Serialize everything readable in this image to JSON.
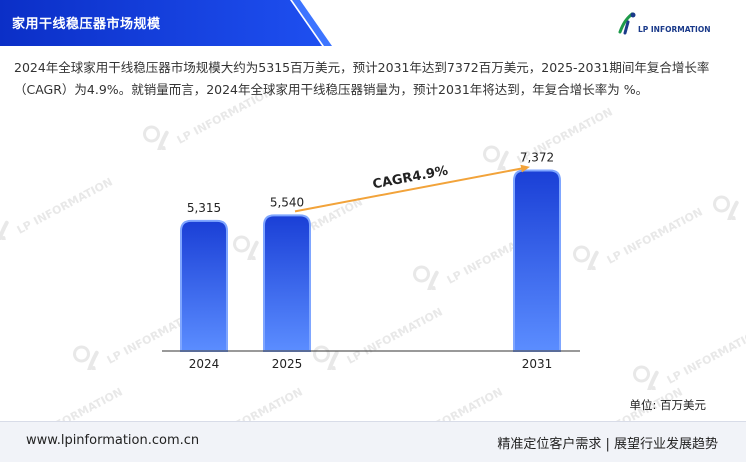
{
  "header": {
    "title": "家用干线稳压器市场规模",
    "logo_text": "LP INFORMATION"
  },
  "description": "2024年全球家用干线稳压器市场规模大约为5315百万美元，预计2031年达到7372百万美元，2025-2031期间年复合增长率（CAGR）为4.9%。就销量而言，2024年全球家用干线稳压器销量为，预计2031年将达到，年复合增长率为 %。",
  "watermark_text": "LP INFORMATION",
  "chart_data": {
    "type": "bar",
    "categories": [
      "2024",
      "2025",
      "2031"
    ],
    "values": [
      5315,
      5540,
      7372
    ],
    "value_labels": [
      "5,315",
      "5,540",
      "7,372"
    ],
    "annotation": "CAGR4.9%",
    "unit": "单位: 百万美元",
    "ylim": [
      0,
      7800
    ],
    "grid": false,
    "colors": {
      "bar_top": "#1a3fd6",
      "bar_bottom": "#5b8dff",
      "arrow": "#f2a33a"
    }
  },
  "footer": {
    "website": "www.lpinformation.com.cn",
    "slogan": "精准定位客户需求 | 展望行业发展趋势"
  }
}
